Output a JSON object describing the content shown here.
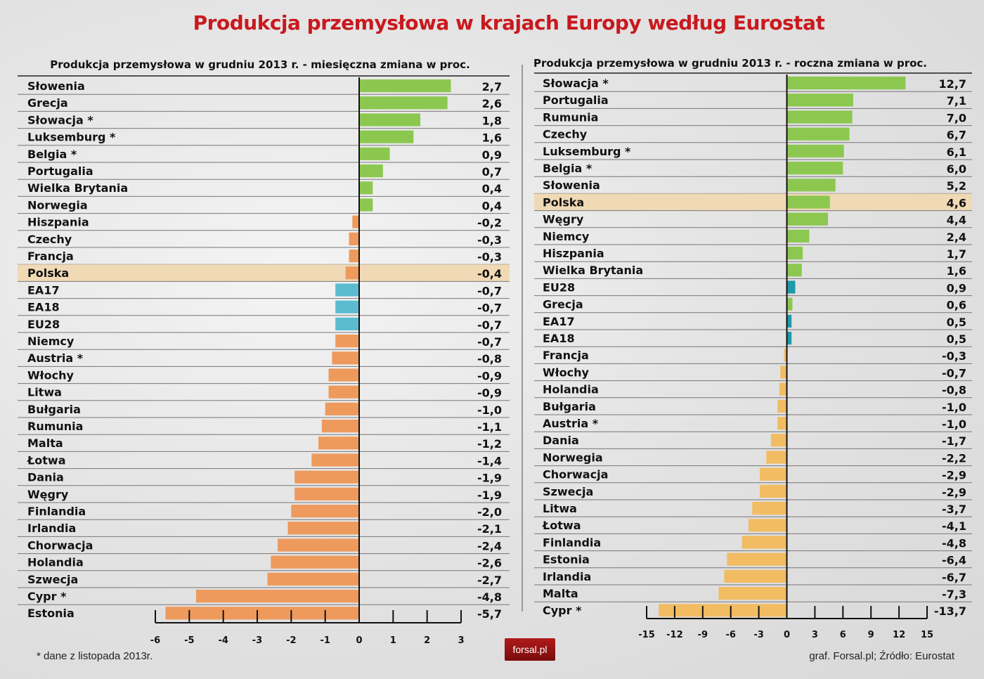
{
  "title": "Produkcja przemysłowa w krajach Europy według Eurostat",
  "footnote": "* dane z listopada 2013r.",
  "source": "graf. Forsal.pl; Źródło: Eurostat",
  "logo": "forsal.pl",
  "colors": {
    "title": "#c8191e",
    "positive": "#8cc850",
    "negative_left": "#ee9a5c",
    "negative_right": "#f2bc62",
    "aggregate_left": "#5bbcd0",
    "aggregate_right": "#1f9aa8",
    "highlight": "#f0d9b5"
  },
  "chart_data": [
    {
      "type": "bar",
      "orientation": "horizontal",
      "title": "Produkcja przemysłowa w grudniu 2013 r. - miesięczna zmiana w proc.",
      "xlim": [
        -6,
        3
      ],
      "xticks": [
        "-6",
        "-5",
        "-4",
        "-3",
        "-2",
        "-1",
        "0",
        "1",
        "2",
        "3"
      ],
      "highlight": "Polska",
      "aggregates": [
        "EA17",
        "EA18",
        "EU28"
      ],
      "categories": [
        "Słowenia",
        "Grecja",
        "Słowacja *",
        "Luksemburg *",
        "Belgia *",
        "Portugalia",
        "Wielka Brytania",
        "Norwegia",
        "Hiszpania",
        "Czechy",
        "Francja",
        "Polska",
        "EA17",
        "EA18",
        "EU28",
        "Niemcy",
        "Austria *",
        "Włochy",
        "Litwa",
        "Bułgaria",
        "Rumunia",
        "Malta",
        "Łotwa",
        "Dania",
        "Węgry",
        "Finlandia",
        "Irlandia",
        "Chorwacja",
        "Holandia",
        "Szwecja",
        "Cypr *",
        "Estonia"
      ],
      "values": [
        2.7,
        2.6,
        1.8,
        1.6,
        0.9,
        0.7,
        0.4,
        0.4,
        -0.2,
        -0.3,
        -0.3,
        -0.4,
        -0.7,
        -0.7,
        -0.7,
        -0.7,
        -0.8,
        -0.9,
        -0.9,
        -1.0,
        -1.1,
        -1.2,
        -1.4,
        -1.9,
        -1.9,
        -2.0,
        -2.1,
        -2.4,
        -2.6,
        -2.7,
        -4.8,
        -5.7
      ],
      "value_labels": [
        "2,7",
        "2,6",
        "1,8",
        "1,6",
        "0,9",
        "0,7",
        "0,4",
        "0,4",
        "-0,2",
        "-0,3",
        "-0,3",
        "-0,4",
        "-0,7",
        "-0,7",
        "-0,7",
        "-0,7",
        "-0,8",
        "-0,9",
        "-0,9",
        "-1,0",
        "-1,1",
        "-1,2",
        "-1,4",
        "-1,9",
        "-1,9",
        "-2,0",
        "-2,1",
        "-2,4",
        "-2,6",
        "-2,7",
        "-4,8",
        "-5,7"
      ]
    },
    {
      "type": "bar",
      "orientation": "horizontal",
      "title": "Produkcja przemysłowa w grudniu 2013 r. - roczna zmiana w proc.",
      "xlim": [
        -15,
        15
      ],
      "xticks": [
        "-15",
        "-12",
        "-9",
        "-6",
        "-3",
        "0",
        "3",
        "6",
        "9",
        "12",
        "15"
      ],
      "highlight": "Polska",
      "aggregates": [
        "EU28",
        "EA17",
        "EA18"
      ],
      "categories": [
        "Słowacja *",
        "Portugalia",
        "Rumunia",
        "Czechy",
        "Luksemburg *",
        "Belgia *",
        "Słowenia",
        "Polska",
        "Węgry",
        "Niemcy",
        "Hiszpania",
        "Wielka Brytania",
        "EU28",
        "Grecja",
        "EA17",
        "EA18",
        "Francja",
        "Włochy",
        "Holandia",
        "Bułgaria",
        "Austria *",
        "Dania",
        "Norwegia",
        "Chorwacja",
        "Szwecja",
        "Litwa",
        "Łotwa",
        "Finlandia",
        "Estonia",
        "Irlandia",
        "Malta",
        "Cypr *"
      ],
      "values": [
        12.7,
        7.1,
        7.0,
        6.7,
        6.1,
        6.0,
        5.2,
        4.6,
        4.4,
        2.4,
        1.7,
        1.6,
        0.9,
        0.6,
        0.5,
        0.5,
        -0.3,
        -0.7,
        -0.8,
        -1.0,
        -1.0,
        -1.7,
        -2.2,
        -2.9,
        -2.9,
        -3.7,
        -4.1,
        -4.8,
        -6.4,
        -6.7,
        -7.3,
        -13.7
      ],
      "value_labels": [
        "12,7",
        "7,1",
        "7,0",
        "6,7",
        "6,1",
        "6,0",
        "5,2",
        "4,6",
        "4,4",
        "2,4",
        "1,7",
        "1,6",
        "0,9",
        "0,6",
        "0,5",
        "0,5",
        "-0,3",
        "-0,7",
        "-0,8",
        "-1,0",
        "-1,0",
        "-1,7",
        "-2,2",
        "-2,9",
        "-2,9",
        "-3,7",
        "-4,1",
        "-4,8",
        "-6,4",
        "-6,7",
        "-7,3",
        "-13,7"
      ]
    }
  ]
}
